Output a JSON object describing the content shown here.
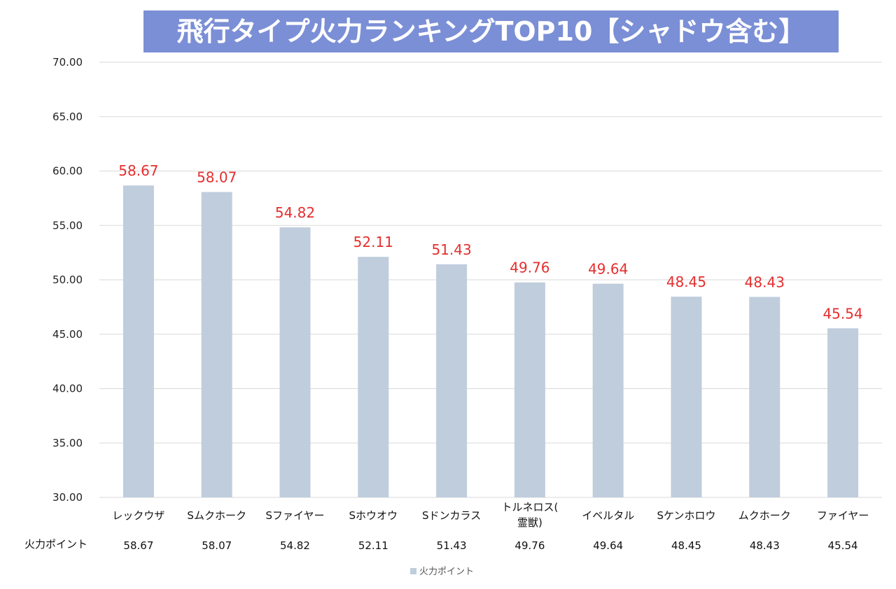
{
  "chart_data": {
    "type": "bar",
    "title": "飛行タイプ火力ランキングTOP10【シャドウ含む】",
    "categories": [
      "レックウザ",
      "Sムクホーク",
      "Sファイヤー",
      "Sホウオウ",
      "Sドンカラス",
      [
        "トルネロス(",
        "霊獣)"
      ],
      "イベルタル",
      "Sケンホロウ",
      "ムクホーク",
      "ファイヤー"
    ],
    "series": [
      {
        "name": "火力ポイント",
        "values": [
          58.67,
          58.07,
          54.82,
          52.11,
          51.43,
          49.76,
          49.64,
          48.45,
          48.43,
          45.54
        ],
        "labels": [
          "58.67",
          "58.07",
          "54.82",
          "52.11",
          "51.43",
          "49.76",
          "49.64",
          "48.45",
          "48.43",
          "45.54"
        ],
        "color": "#bfcddd"
      }
    ],
    "ylim": [
      30,
      70
    ],
    "yticks": [
      "30.00",
      "35.00",
      "40.00",
      "45.00",
      "50.00",
      "55.00",
      "60.00",
      "65.00",
      "70.00"
    ],
    "grid": true,
    "legend": "bottom",
    "data_label_color": "#e52e2e",
    "title_background": "#7b8fd6"
  }
}
